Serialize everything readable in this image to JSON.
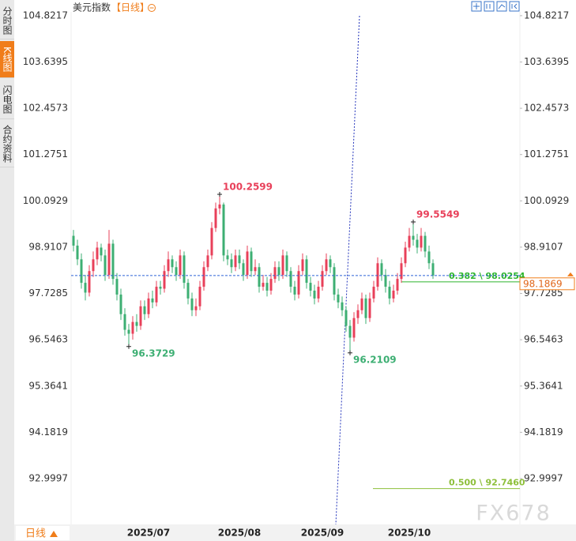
{
  "ui": {
    "tabs": [
      "分时图",
      "K线图",
      "闪电图",
      "合约资料"
    ],
    "active_tab": 1,
    "period_button": "日线",
    "watermark": "FX678"
  },
  "chart_data": {
    "type": "candlestick",
    "title": "美元指数",
    "period": "【日线】",
    "up_color": "#e8405a",
    "down_color": "#3daf73",
    "categories": [
      null,
      null,
      null,
      null,
      null,
      null,
      null,
      null,
      null,
      null,
      null,
      null,
      null,
      null,
      null,
      null,
      null,
      null,
      null,
      "2025/07",
      null,
      null,
      null,
      null,
      null,
      null,
      null,
      null,
      null,
      null,
      null,
      null,
      null,
      null,
      null,
      null,
      null,
      null,
      null,
      null,
      null,
      null,
      "2025/08",
      null,
      null,
      null,
      null,
      null,
      null,
      null,
      null,
      null,
      null,
      null,
      null,
      null,
      null,
      null,
      null,
      null,
      null,
      null,
      null,
      "2025/09",
      null,
      null,
      null,
      null,
      null,
      null,
      null,
      null,
      null,
      null,
      null,
      null,
      null,
      null,
      null,
      null,
      null,
      null,
      null,
      null,
      null,
      "2025/10",
      null,
      null,
      null,
      null,
      null,
      null
    ],
    "open": [
      99.2,
      98.95,
      98.6,
      98,
      97.75,
      98.3,
      98.6,
      98.9,
      98.7,
      98.2,
      99,
      98.1,
      97.7,
      97.2,
      96.8,
      96.7,
      97,
      96.9,
      97.4,
      97.2,
      97.6,
      97.5,
      97.9,
      97.85,
      98.3,
      98.6,
      98.4,
      98.2,
      98.7,
      98,
      97.6,
      97.3,
      97.4,
      97.9,
      98.4,
      98.7,
      99.4,
      99.9,
      100,
      98.7,
      98.6,
      98.4,
      98.7,
      98.5,
      98.2,
      98.8,
      98.3,
      98.4,
      97.9,
      98,
      97.8,
      98.1,
      98.4,
      98.2,
      98.7,
      98.3,
      97.9,
      97.7,
      98.3,
      98.6,
      98,
      97.8,
      97.6,
      97.9,
      98.3,
      98.6,
      98.4,
      97.7,
      97.5,
      97.3,
      96.9,
      96.6,
      97.1,
      97.3,
      97.6,
      97.1,
      97.6,
      97.9,
      98.5,
      98.2,
      97.9,
      97.6,
      97.8,
      98.1,
      98.5,
      98.9,
      99.2,
      99.1,
      98.9,
      99.2,
      98.8,
      98.5
    ],
    "high": [
      99.35,
      99.1,
      98.75,
      98.2,
      98.45,
      98.8,
      99.05,
      99,
      98.85,
      99.35,
      99.1,
      98.25,
      97.85,
      97.35,
      96.95,
      97.15,
      97.2,
      97.55,
      97.55,
      97.75,
      97.8,
      98.05,
      98.05,
      98.45,
      98.8,
      98.7,
      98.55,
      98.85,
      98.8,
      98.1,
      97.75,
      97.6,
      98.05,
      98.55,
      98.85,
      99.55,
      100.05,
      100.2599,
      100.05,
      98.85,
      98.75,
      98.85,
      98.85,
      98.6,
      98.95,
      98.9,
      98.6,
      98.5,
      98.2,
      98.15,
      98.25,
      98.55,
      98.55,
      98.85,
      98.8,
      98.4,
      98.05,
      98.45,
      98.75,
      98.7,
      98.15,
      97.95,
      98.05,
      98.45,
      98.75,
      98.7,
      98.5,
      97.85,
      97.65,
      97.4,
      97.05,
      97.25,
      97.45,
      97.75,
      97.7,
      97.75,
      98.05,
      98.65,
      98.6,
      98.35,
      98.05,
      97.95,
      98.25,
      98.65,
      99.05,
      99.4,
      99.5549,
      99.25,
      99.4,
      99.3,
      98.95,
      98.6
    ],
    "low": [
      98.8,
      98.45,
      97.85,
      97.55,
      97.65,
      98.15,
      98.45,
      98.55,
      98.05,
      98.1,
      97.95,
      97.55,
      97.05,
      96.65,
      96.3729,
      96.55,
      96.75,
      96.8,
      97.05,
      97.1,
      97.35,
      97.4,
      97.7,
      97.75,
      98.15,
      98.25,
      98.05,
      98.1,
      97.85,
      97.45,
      97.15,
      97.15,
      97.3,
      97.8,
      98.3,
      98.6,
      99.3,
      99.75,
      98.55,
      98.45,
      98.25,
      98.3,
      98.35,
      98.05,
      98.1,
      98.15,
      98.2,
      97.75,
      97.8,
      97.65,
      97.7,
      98,
      98.05,
      98.1,
      98.15,
      97.75,
      97.55,
      97.6,
      98.2,
      97.85,
      97.65,
      97.45,
      97.5,
      97.8,
      98.2,
      98.25,
      97.55,
      97.35,
      97.15,
      96.75,
      96.2109,
      96.5,
      96.95,
      97.2,
      96.95,
      97,
      97.5,
      97.8,
      98.05,
      97.75,
      97.45,
      97.5,
      97.7,
      98,
      98.4,
      98.8,
      98.95,
      98.75,
      98.8,
      98.65,
      98.35,
      98.1
    ],
    "close": [
      98.95,
      98.6,
      98,
      97.75,
      98.3,
      98.6,
      98.9,
      98.7,
      98.2,
      99,
      98.1,
      97.7,
      97.2,
      96.8,
      96.7,
      97,
      96.9,
      97.4,
      97.2,
      97.6,
      97.5,
      97.9,
      97.85,
      98.3,
      98.6,
      98.4,
      98.2,
      98.7,
      98,
      97.6,
      97.3,
      97.4,
      97.9,
      98.4,
      98.7,
      99.4,
      99.9,
      100,
      98.7,
      98.6,
      98.4,
      98.7,
      98.5,
      98.2,
      98.8,
      98.3,
      98.4,
      97.9,
      98,
      97.8,
      98.1,
      98.4,
      98.2,
      98.7,
      98.3,
      97.9,
      97.7,
      98.3,
      98.6,
      98,
      97.8,
      97.6,
      97.9,
      98.3,
      98.6,
      98.4,
      97.7,
      97.5,
      97.3,
      96.9,
      96.6,
      97.1,
      97.3,
      97.6,
      97.1,
      97.6,
      97.9,
      98.5,
      98.2,
      97.9,
      97.6,
      97.8,
      98.1,
      98.5,
      98.9,
      99.2,
      99.1,
      98.9,
      99.2,
      98.8,
      98.5,
      98.1869
    ],
    "ylim": [
      91.87,
      104.92
    ],
    "yticks": [
      104.8217,
      103.6395,
      102.4573,
      101.2751,
      100.0929,
      98.9107,
      97.7285,
      96.5463,
      95.3641,
      94.1819,
      92.9997
    ],
    "grid": false,
    "price_line_color": "#2f63d6",
    "fib_levels": [
      {
        "label": "0.382 \\ 98.0254",
        "value": 98.0254,
        "color": "#2db52d"
      },
      {
        "label": "0.500 \\ 92.7460",
        "value": 92.746,
        "color": "#8dbf3a"
      }
    ]
  }
}
